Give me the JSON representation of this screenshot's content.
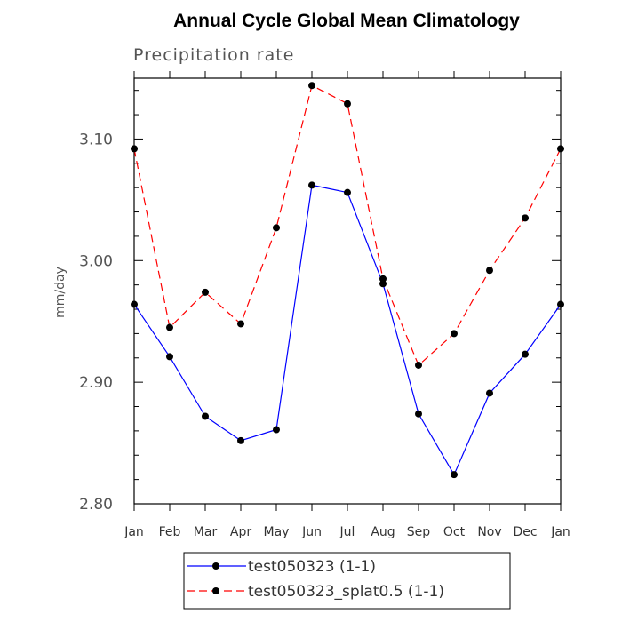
{
  "chart_data": {
    "type": "line",
    "title": "Annual Cycle Global Mean Climatology",
    "subtitle": "Precipitation rate",
    "xlabel": "",
    "ylabel": "mm/day",
    "categories": [
      "Jan",
      "Feb",
      "Mar",
      "Apr",
      "May",
      "Jun",
      "Jul",
      "Aug",
      "Sep",
      "Oct",
      "Nov",
      "Dec",
      "Jan"
    ],
    "ylim": [
      2.8,
      3.15
    ],
    "yticks": [
      2.8,
      2.9,
      3.0,
      3.1
    ],
    "ytick_labels": [
      "2.80",
      "2.90",
      "3.00",
      "3.10"
    ],
    "series": [
      {
        "name": "test050323 (1-1)",
        "color": "#0000ff",
        "dash": "solid",
        "values": [
          2.964,
          2.921,
          2.872,
          2.852,
          2.861,
          3.062,
          3.056,
          2.981,
          2.874,
          2.824,
          2.891,
          2.923,
          2.964
        ]
      },
      {
        "name": "test050323_splat0.5 (1-1)",
        "color": "#ff0000",
        "dash": "dashed",
        "values": [
          3.092,
          2.945,
          2.974,
          2.948,
          3.027,
          3.144,
          3.129,
          2.985,
          2.914,
          2.94,
          2.992,
          3.035,
          3.092
        ]
      }
    ],
    "legend_position": "bottom",
    "grid": false
  }
}
